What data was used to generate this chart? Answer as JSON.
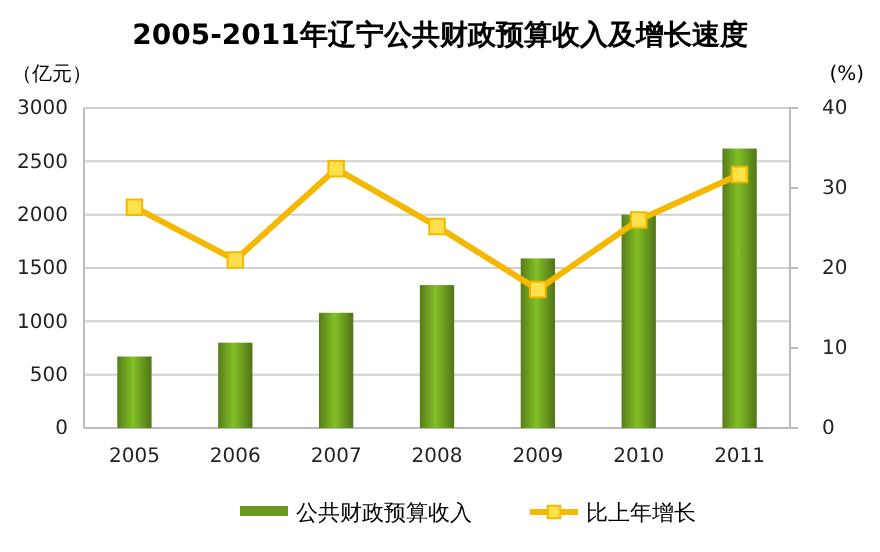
{
  "chart_data": {
    "type": "bar",
    "title": "2005-2011年辽宁公共财政预算收入及增长速度",
    "ylabel": "（亿元）",
    "y2label": "(%)",
    "categories": [
      "2005",
      "2006",
      "2007",
      "2008",
      "2009",
      "2010",
      "2011"
    ],
    "series": [
      {
        "name": "公共财政预算收入",
        "color": "#6a9a1f",
        "values": [
          670,
          800,
          1080,
          1340,
          1590,
          2000,
          2620
        ]
      },
      {
        "name": "比上年增长",
        "type": "line",
        "axis": "y2",
        "color": "#f5b800",
        "marker": "square",
        "values": [
          27.6,
          21.0,
          32.4,
          25.2,
          17.3,
          26.0,
          31.7
        ]
      }
    ],
    "ylim": [
      0,
      3000
    ],
    "yticks": [
      0,
      500,
      1000,
      1500,
      2000,
      2500,
      3000
    ],
    "y2lim": [
      0,
      40
    ],
    "y2ticks": [
      0,
      10,
      20,
      30,
      40
    ],
    "grid": "y",
    "legend": "bottom"
  }
}
